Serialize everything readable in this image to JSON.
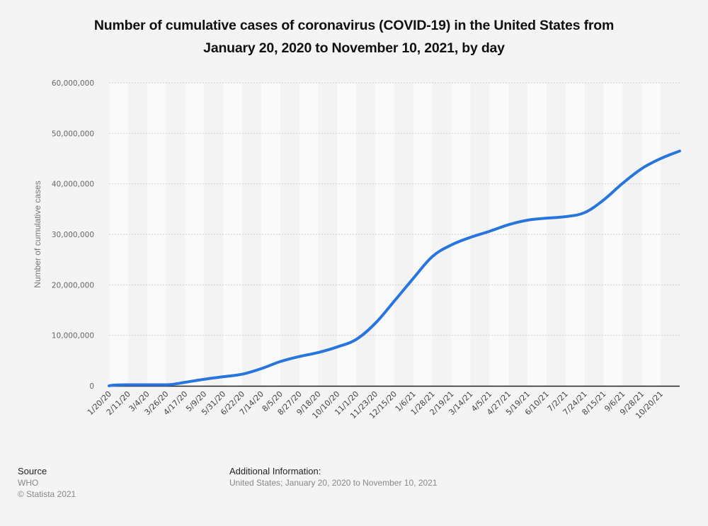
{
  "chart_data": {
    "type": "line",
    "title": "Number of cumulative cases of coronavirus (COVID-19) in the United States from January 20, 2020 to November 10, 2021, by day",
    "title_lines": [
      "Number of cumulative cases of coronavirus (COVID-19) in the United States from",
      "January 20, 2020 to November 10, 2021, by day"
    ],
    "xlabel": "",
    "ylabel": "Number of cumulative cases",
    "ylim": [
      0,
      60000000
    ],
    "yticks": [
      0,
      10000000,
      20000000,
      30000000,
      40000000,
      50000000,
      60000000
    ],
    "ytick_labels": [
      "0",
      "10,000,000",
      "20,000,000",
      "30,000,000",
      "40,000,000",
      "50,000,000",
      "60,000,000"
    ],
    "grid": true,
    "legend": "none",
    "line_color": "#2876dd",
    "categories": [
      "1/20/20",
      "2/11/20",
      "3/4/20",
      "3/26/20",
      "4/17/20",
      "5/9/20",
      "5/31/20",
      "6/22/20",
      "7/14/20",
      "8/5/20",
      "8/27/20",
      "9/18/20",
      "10/10/20",
      "11/1/20",
      "11/23/20",
      "12/15/20",
      "1/6/21",
      "1/28/21",
      "2/19/21",
      "3/14/21",
      "4/5/21",
      "4/27/21",
      "5/19/21",
      "6/10/21",
      "7/2/21",
      "7/24/21",
      "8/15/21",
      "9/6/21",
      "9/28/21",
      "10/20/21",
      "11/10/21"
    ],
    "tick_labels_shown": [
      "1/20/20",
      "2/11/20",
      "3/4/20",
      "3/26/20",
      "4/17/20",
      "5/9/20",
      "5/31/20",
      "6/22/20",
      "7/14/20",
      "8/5/20",
      "8/27/20",
      "9/18/20",
      "10/10/20",
      "11/1/20",
      "11/23/20",
      "12/15/20",
      "1/6/21",
      "1/28/21",
      "2/19/21",
      "3/14/21",
      "4/5/21",
      "4/27/21",
      "5/19/21",
      "6/10/21",
      "7/2/21",
      "7/24/21",
      "8/15/21",
      "9/6/21",
      "9/28/21",
      "10/20/21"
    ],
    "series": [
      {
        "name": "Number of cumulative cases",
        "values": [
          0,
          10,
          100,
          80000,
          700000,
          1300000,
          1800000,
          2300000,
          3400000,
          4800000,
          5800000,
          6600000,
          7700000,
          9200000,
          12400000,
          16800000,
          21300000,
          25600000,
          27900000,
          29400000,
          30600000,
          31900000,
          32800000,
          33200000,
          33500000,
          34300000,
          36800000,
          40100000,
          43000000,
          45000000,
          46500000
        ]
      }
    ]
  },
  "footer": {
    "source_heading": "Source",
    "source_name": "WHO",
    "copyright": "© Statista 2021",
    "additional_heading": "Additional Information:",
    "additional_text": "United States; January 20, 2020 to November 10, 2021"
  }
}
